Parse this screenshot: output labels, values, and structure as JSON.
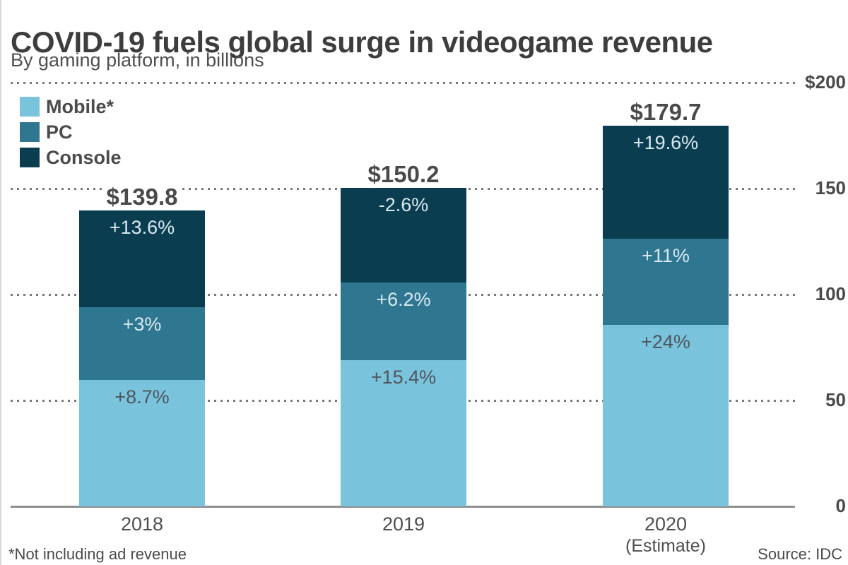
{
  "header": {
    "title": "COVID-19 fuels global surge in videogame revenue",
    "subtitle": "By gaming platform, in billions"
  },
  "legend": [
    {
      "label": "Mobile*",
      "color": "#7ac3dd"
    },
    {
      "label": "PC",
      "color": "#2f7690"
    },
    {
      "label": "Console",
      "color": "#0b3d50"
    }
  ],
  "footer": {
    "note": "*Not including ad revenue",
    "source": "Source: IDC"
  },
  "chart_data": {
    "type": "bar",
    "stacked": true,
    "unit": "USD billions",
    "categories": [
      "2018",
      "2019",
      "2020"
    ],
    "category_sublabels": [
      "",
      "",
      "(Estimate)"
    ],
    "totals": [
      139.8,
      150.2,
      179.7
    ],
    "total_labels": [
      "$139.8",
      "$150.2",
      "$179.7"
    ],
    "series": [
      {
        "name": "Mobile*",
        "color": "#7ac3dd",
        "values": [
          59.7,
          69.0,
          85.6
        ],
        "change_labels": [
          "+8.7%",
          "+15.4%",
          "+24%"
        ],
        "label_color": "#4e565c"
      },
      {
        "name": "PC",
        "color": "#2f7690",
        "values": [
          34.4,
          36.6,
          40.7
        ],
        "change_labels": [
          "+3%",
          "+6.2%",
          "+11%"
        ],
        "label_color": "#d9e9f0"
      },
      {
        "name": "Console",
        "color": "#0b3d50",
        "values": [
          45.7,
          44.6,
          53.4
        ],
        "change_labels": [
          "+13.6%",
          "-2.6%",
          "+19.6%"
        ],
        "label_color": "#d9e9f0"
      }
    ],
    "y_axis": {
      "side": "right",
      "min": 0,
      "max": 200,
      "ticks": [
        0,
        50,
        100,
        150,
        200
      ],
      "tick_labels": [
        "0",
        "50",
        "100",
        "150",
        "$200"
      ],
      "grid": "dotted"
    }
  }
}
